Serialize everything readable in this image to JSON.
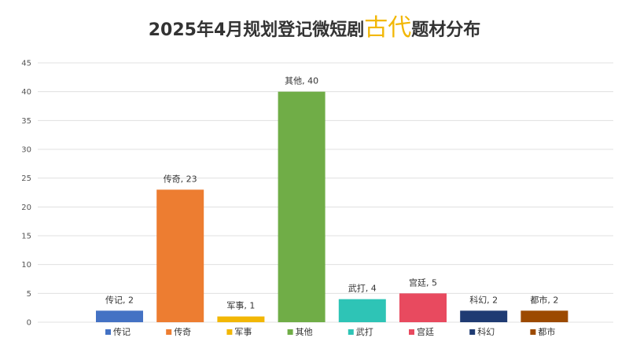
{
  "title": {
    "prefix": "2025年4月规划登记微短剧",
    "highlight": "古代",
    "suffix": "题材分布"
  },
  "chart_data": {
    "type": "bar",
    "categories": [
      "传记",
      "传奇",
      "军事",
      "其他",
      "武打",
      "宫廷",
      "科幻",
      "都市"
    ],
    "values": [
      2,
      23,
      1,
      40,
      4,
      5,
      2,
      2
    ],
    "data_labels": [
      "传记, 2",
      "传奇, 23",
      "军事, 1",
      "其他, 40",
      "武打, 4",
      "宫廷, 5",
      "科幻, 2",
      "都市, 2"
    ],
    "colors": [
      "#4472c4",
      "#ed7d31",
      "#f2b705",
      "#70ad47",
      "#2ec4b6",
      "#e84a5f",
      "#1f3b73",
      "#9c4a00"
    ],
    "ylim": [
      0,
      45
    ],
    "yticks": [
      0,
      5,
      10,
      15,
      20,
      25,
      30,
      35,
      40,
      45
    ],
    "grid": true,
    "legend": "bottom",
    "highlight_color": "#f2b705"
  }
}
